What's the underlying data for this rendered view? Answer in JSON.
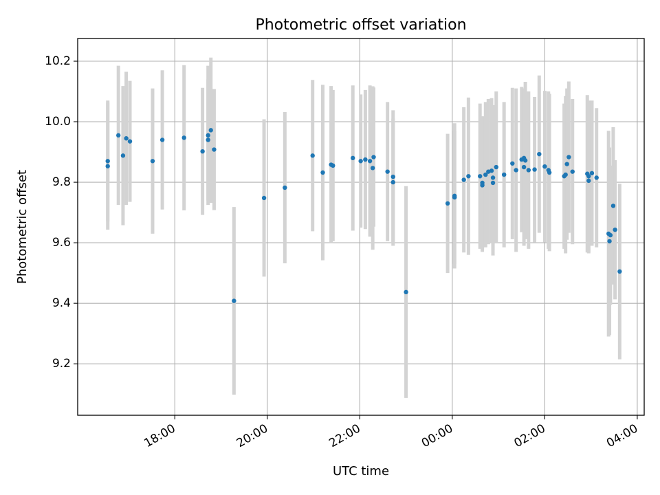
{
  "chart_data": {
    "type": "scatter",
    "title": "Photometric offset variation",
    "xlabel": "UTC time",
    "ylabel": "Photometric offset",
    "x_unit": "UTC time of night (hours, values past 24 fall after midnight)",
    "xlim": [
      15.9,
      28.15
    ],
    "ylim": [
      9.03,
      10.275
    ],
    "grid": true,
    "x_ticks": [
      {
        "value": 18,
        "label": "18:00"
      },
      {
        "value": 20,
        "label": "20:00"
      },
      {
        "value": 22,
        "label": "22:00"
      },
      {
        "value": 24,
        "label": "00:00"
      },
      {
        "value": 26,
        "label": "02:00"
      },
      {
        "value": 28,
        "label": "04:00"
      }
    ],
    "y_ticks": [
      {
        "value": 9.2,
        "label": "9.2"
      },
      {
        "value": 9.4,
        "label": "9.4"
      },
      {
        "value": 9.6,
        "label": "9.6"
      },
      {
        "value": 9.8,
        "label": "9.8"
      },
      {
        "value": 10.0,
        "label": "10.0"
      },
      {
        "value": 10.2,
        "label": "10.2"
      }
    ],
    "colors": {
      "marker": "#1f77b4",
      "errorbar": "#d3d3d3",
      "grid": "#b0b0b0"
    },
    "points": [
      [
        16.55,
        9.853,
        0.21
      ],
      [
        16.55,
        9.87,
        0.2
      ],
      [
        16.78,
        9.955,
        0.23
      ],
      [
        16.88,
        9.888,
        0.23
      ],
      [
        16.95,
        9.945,
        0.22
      ],
      [
        17.03,
        9.935,
        0.2
      ],
      [
        17.52,
        9.87,
        0.24
      ],
      [
        17.73,
        9.94,
        0.23
      ],
      [
        18.2,
        9.947,
        0.24
      ],
      [
        18.6,
        9.902,
        0.21
      ],
      [
        18.72,
        9.94,
        0.2
      ],
      [
        18.72,
        9.955,
        0.23
      ],
      [
        18.78,
        9.972,
        0.24
      ],
      [
        18.85,
        9.908,
        0.2
      ],
      [
        19.28,
        9.408,
        0.31
      ],
      [
        19.93,
        9.748,
        0.26
      ],
      [
        20.38,
        9.782,
        0.25
      ],
      [
        20.98,
        9.888,
        0.25
      ],
      [
        21.2,
        9.832,
        0.29
      ],
      [
        21.38,
        9.858,
        0.26
      ],
      [
        21.42,
        9.855,
        0.25
      ],
      [
        21.85,
        9.88,
        0.24
      ],
      [
        22.02,
        9.87,
        0.22
      ],
      [
        22.12,
        9.875,
        0.23
      ],
      [
        22.22,
        9.87,
        0.25
      ],
      [
        22.28,
        9.847,
        0.27
      ],
      [
        22.3,
        9.883,
        0.23
      ],
      [
        22.6,
        9.835,
        0.23
      ],
      [
        22.72,
        9.818,
        0.22
      ],
      [
        22.72,
        9.8,
        0.21
      ],
      [
        23.0,
        9.437,
        0.35
      ],
      [
        23.9,
        9.73,
        0.23
      ],
      [
        24.05,
        9.755,
        0.24
      ],
      [
        24.05,
        9.75,
        0.22
      ],
      [
        24.25,
        9.808,
        0.24
      ],
      [
        24.35,
        9.82,
        0.26
      ],
      [
        24.6,
        9.82,
        0.24
      ],
      [
        24.65,
        9.798,
        0.22
      ],
      [
        24.65,
        9.79,
        0.22
      ],
      [
        24.72,
        9.825,
        0.24
      ],
      [
        24.78,
        9.835,
        0.24
      ],
      [
        24.85,
        9.838,
        0.24
      ],
      [
        24.88,
        9.798,
        0.24
      ],
      [
        24.88,
        9.815,
        0.24
      ],
      [
        24.95,
        9.85,
        0.25
      ],
      [
        25.12,
        9.825,
        0.24
      ],
      [
        25.3,
        9.862,
        0.25
      ],
      [
        25.38,
        9.84,
        0.27
      ],
      [
        25.5,
        9.875,
        0.24
      ],
      [
        25.55,
        9.88,
        0.23
      ],
      [
        25.55,
        9.85,
        0.26
      ],
      [
        25.58,
        9.872,
        0.26
      ],
      [
        25.65,
        9.84,
        0.26
      ],
      [
        25.78,
        9.842,
        0.24
      ],
      [
        25.88,
        9.893,
        0.26
      ],
      [
        26.0,
        9.852,
        0.25
      ],
      [
        26.08,
        9.84,
        0.26
      ],
      [
        26.1,
        9.832,
        0.26
      ],
      [
        26.42,
        9.82,
        0.24
      ],
      [
        26.45,
        9.825,
        0.26
      ],
      [
        26.48,
        9.86,
        0.25
      ],
      [
        26.52,
        9.883,
        0.25
      ],
      [
        26.6,
        9.835,
        0.24
      ],
      [
        26.92,
        9.828,
        0.26
      ],
      [
        26.95,
        9.82,
        0.25
      ],
      [
        26.95,
        9.805,
        0.24
      ],
      [
        27.02,
        9.83,
        0.24
      ],
      [
        27.12,
        9.815,
        0.23
      ],
      [
        27.38,
        9.63,
        0.34
      ],
      [
        27.4,
        9.605,
        0.31
      ],
      [
        27.42,
        9.625,
        0.23
      ],
      [
        27.48,
        9.722,
        0.26
      ],
      [
        27.52,
        9.643,
        0.23
      ],
      [
        27.62,
        9.505,
        0.29
      ]
    ]
  }
}
